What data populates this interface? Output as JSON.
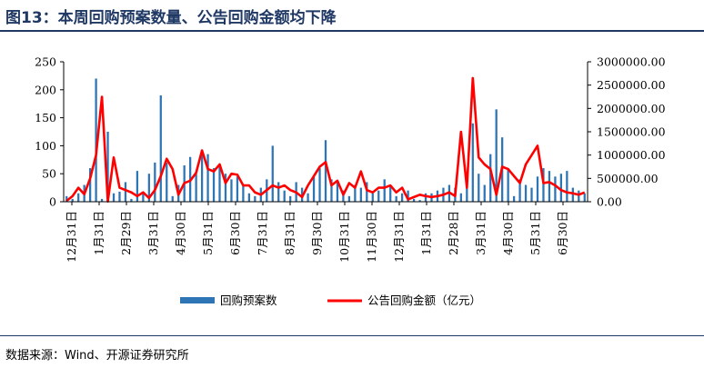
{
  "figure": {
    "title": "图13：本周回购预案数量、公告回购金额均下降",
    "source": "数据来源：Wind、开源证券研究所"
  },
  "colors": {
    "bar": "#2e75b6",
    "line": "#ff0000",
    "rule": "#1f3864"
  },
  "chart_data": {
    "type": "bar+line",
    "x_tick_labels": [
      "12月31日",
      "1月31日",
      "2月29日",
      "3月31日",
      "4月30日",
      "5月31日",
      "6月30日",
      "7月31日",
      "8月31日",
      "9月30日",
      "10月31日",
      "11月30日",
      "12月31日",
      "1月31日",
      "2月28日",
      "3月31日",
      "4月30日",
      "5月31日",
      "6月30日"
    ],
    "legend": [
      {
        "label": "回购预案数",
        "series": "bars",
        "marker": "bar"
      },
      {
        "label": "公告回购金额（亿元）",
        "series": "line",
        "marker": "line"
      }
    ],
    "left_axis": {
      "ticks": [
        "0",
        "50",
        "100",
        "150",
        "200",
        "250"
      ],
      "min": 0,
      "max": 250
    },
    "right_axis": {
      "ticks": [
        "0.00",
        "500000.00",
        "1000000.00",
        "1500000.00",
        "2000000.00",
        "2500000.00",
        "3000000.00"
      ],
      "min": 0,
      "max": 3000000
    },
    "series": [
      {
        "name": "回购预案数",
        "axis": "left",
        "type": "bar",
        "values": [
          10,
          5,
          15,
          30,
          60,
          220,
          5,
          125,
          15,
          18,
          35,
          5,
          55,
          15,
          50,
          70,
          190,
          70,
          10,
          30,
          65,
          80,
          50,
          90,
          85,
          60,
          65,
          50,
          40,
          45,
          30,
          15,
          10,
          25,
          40,
          100,
          35,
          20,
          10,
          35,
          25,
          15,
          45,
          60,
          110,
          40,
          35,
          20,
          10,
          30,
          25,
          35,
          15,
          20,
          40,
          30,
          10,
          15,
          20,
          5,
          3,
          15,
          15,
          20,
          25,
          30,
          25,
          15,
          30,
          140,
          50,
          30,
          85,
          165,
          115,
          60,
          10,
          40,
          30,
          25,
          45,
          60,
          55,
          45,
          50,
          55,
          25,
          20,
          15
        ]
      },
      {
        "name": "公告回购金额（亿元）",
        "axis": "right",
        "type": "line",
        "values": [
          20000,
          120000,
          300000,
          160000,
          500000,
          1000000,
          2250000,
          5000,
          950000,
          300000,
          250000,
          200000,
          120000,
          200000,
          80000,
          250000,
          550000,
          920000,
          700000,
          150000,
          400000,
          450000,
          620000,
          1100000,
          700000,
          650000,
          800000,
          400000,
          600000,
          580000,
          350000,
          350000,
          200000,
          150000,
          250000,
          350000,
          300000,
          350000,
          250000,
          200000,
          100000,
          350000,
          550000,
          750000,
          850000,
          350000,
          450000,
          150000,
          400000,
          300000,
          650000,
          250000,
          200000,
          300000,
          300000,
          350000,
          200000,
          300000,
          50000,
          100000,
          150000,
          120000,
          100000,
          120000,
          150000,
          200000,
          120000,
          1500000,
          300000,
          2650000,
          950000,
          800000,
          700000,
          150000,
          750000,
          700000,
          550000,
          400000,
          800000,
          1000000,
          1200000,
          400000,
          420000,
          350000,
          250000,
          200000,
          180000,
          150000,
          200000
        ]
      }
    ]
  }
}
